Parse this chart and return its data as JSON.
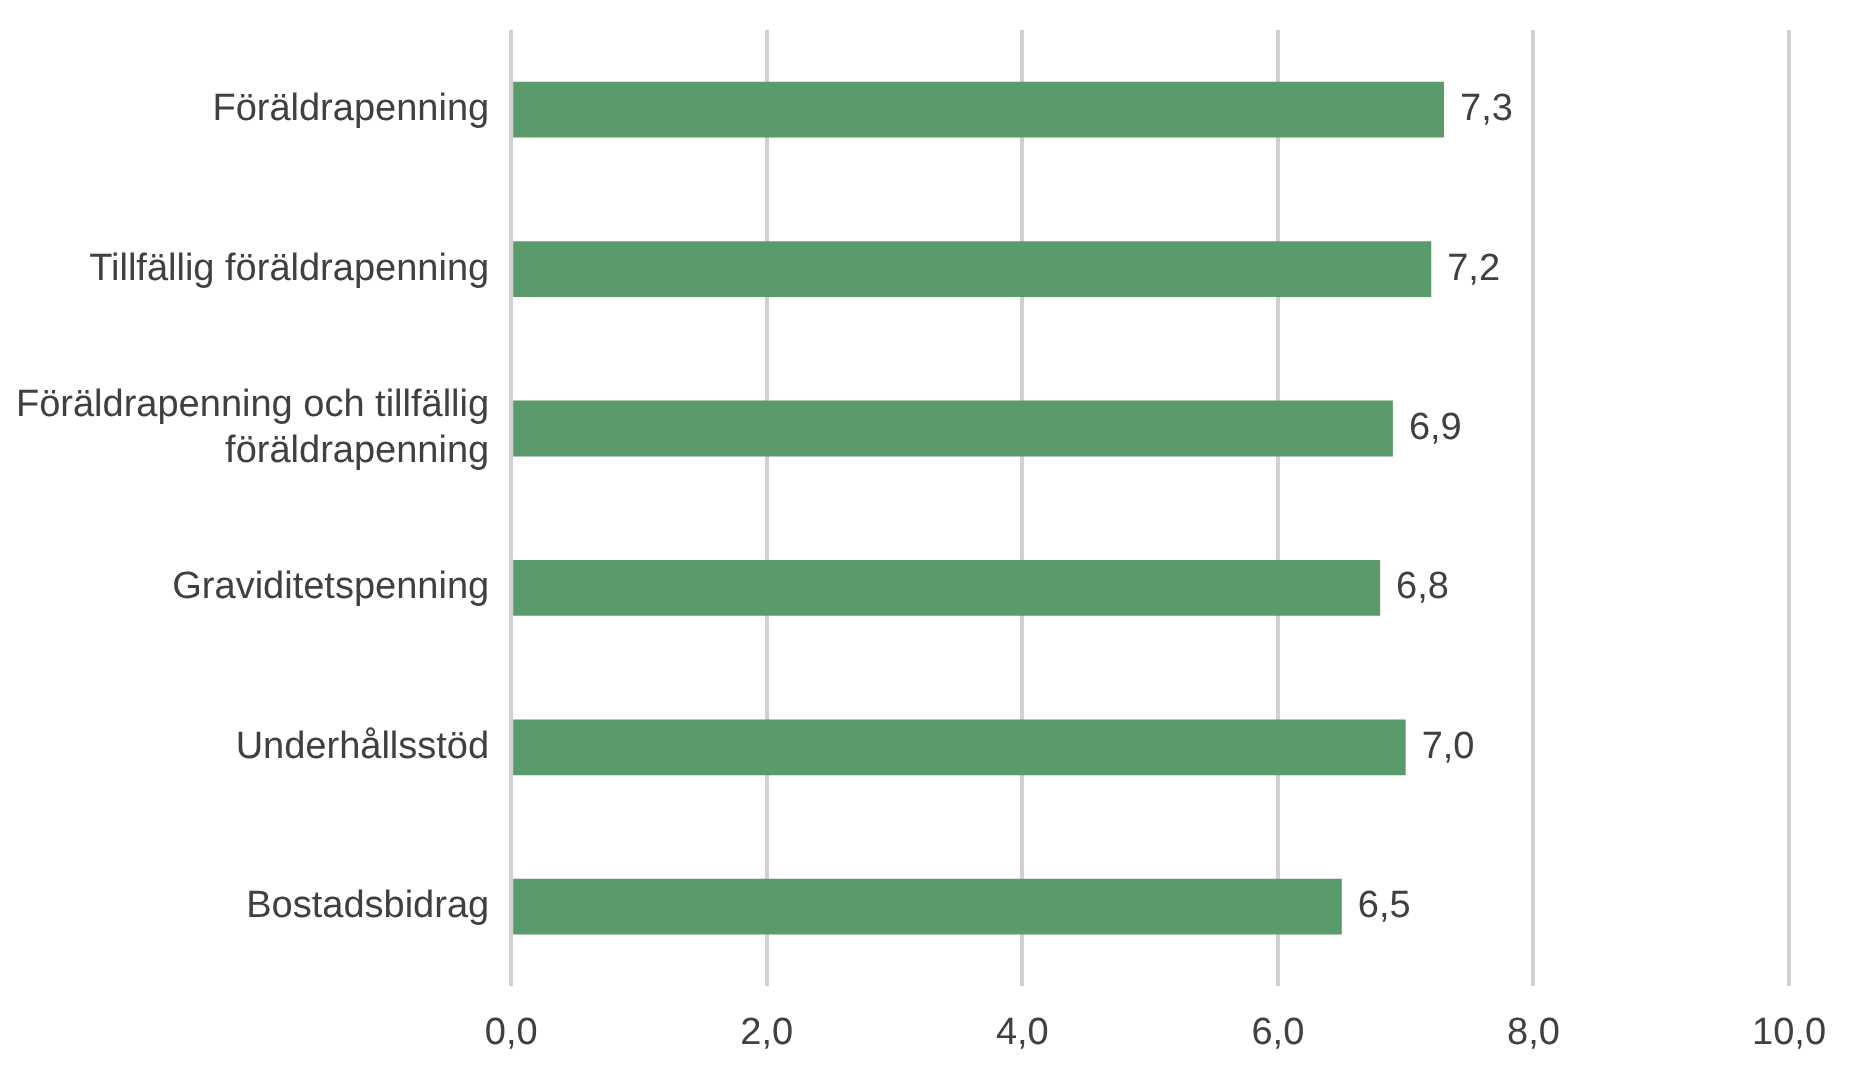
{
  "chart_data": {
    "type": "bar",
    "orientation": "horizontal",
    "categories": [
      "Föräldrapenning",
      "Tillfällig föräldrapenning",
      "Föräldrapenning och tillfällig föräldrapenning",
      "Graviditetspenning",
      "Underhållsstöd",
      "Bostadsbidrag"
    ],
    "values": [
      7.3,
      7.2,
      6.9,
      6.8,
      7.0,
      6.5
    ],
    "value_labels": [
      "7,3",
      "7,2",
      "6,9",
      "6,8",
      "7,0",
      "6,5"
    ],
    "color": "#5b9b6b",
    "xlim": [
      0,
      10
    ],
    "xticks": [
      {
        "value": 0,
        "label": "0,0"
      },
      {
        "value": 2,
        "label": "2,0"
      },
      {
        "value": 4,
        "label": "4,0"
      },
      {
        "value": 6,
        "label": "6,0"
      },
      {
        "value": 8,
        "label": "8,0"
      },
      {
        "value": 10,
        "label": "10,0"
      }
    ],
    "grid": "x",
    "legend": false
  }
}
